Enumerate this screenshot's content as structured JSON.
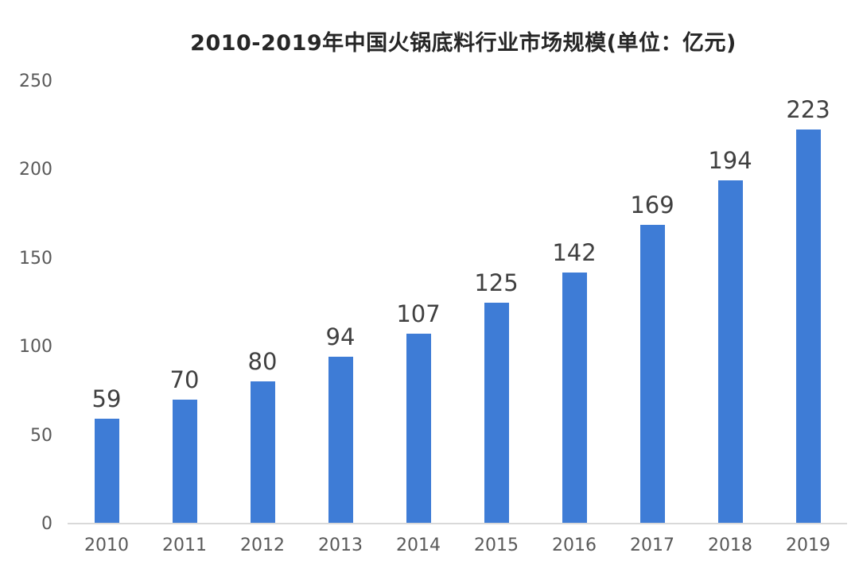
{
  "title": "2010-2019年中国火锅底料行业市场规模(单位：亿元)",
  "colors": {
    "bar": "#3E7CD6",
    "axis_line": "#D9D9D9",
    "tick_label": "#595959",
    "value_label": "#404040",
    "title_text": "#262626",
    "background": "#FFFFFF"
  },
  "chart_data": {
    "type": "bar",
    "title": "2010-2019年中国火锅底料行业市场规模(单位：亿元)",
    "categories": [
      "2010",
      "2011",
      "2012",
      "2013",
      "2014",
      "2015",
      "2016",
      "2017",
      "2018",
      "2019"
    ],
    "values": [
      59,
      70,
      80,
      94,
      107,
      125,
      142,
      169,
      194,
      223
    ],
    "xlabel": "",
    "ylabel": "",
    "ylim": [
      0,
      250
    ],
    "yticks": [
      0,
      50,
      100,
      150,
      200,
      250
    ],
    "grid": false,
    "legend": "none",
    "data_labels": true,
    "bar_color": "#3E7CD6"
  }
}
